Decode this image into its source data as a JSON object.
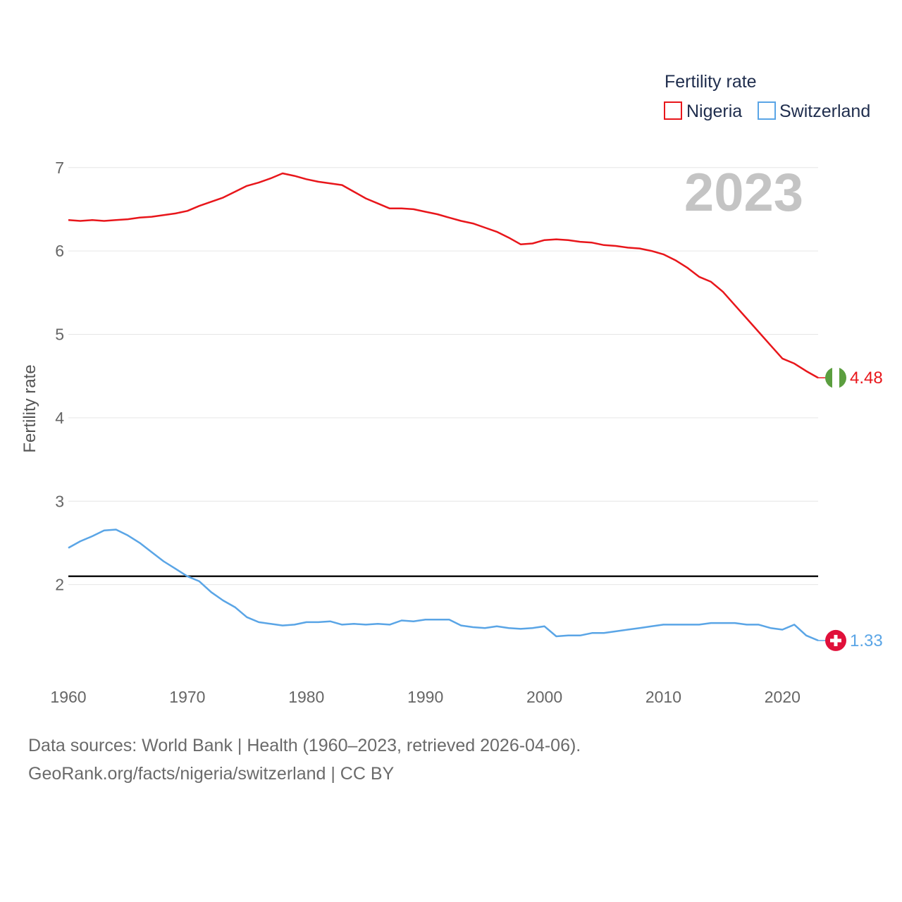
{
  "chart_data": {
    "type": "line",
    "legend_title": "Fertility rate",
    "ylabel": "Fertility rate",
    "xlabel": "",
    "year_label": "2023",
    "xlim": [
      1960,
      2023
    ],
    "ylim": [
      1,
      7.15
    ],
    "x_ticks": [
      1960,
      1970,
      1980,
      1990,
      2000,
      2010,
      2020
    ],
    "y_ticks": [
      2,
      3,
      4,
      5,
      6,
      7
    ],
    "reference_line": 2.1,
    "legend_position": "top-right",
    "x": [
      1960,
      1961,
      1962,
      1963,
      1964,
      1965,
      1966,
      1967,
      1968,
      1969,
      1970,
      1971,
      1972,
      1973,
      1974,
      1975,
      1976,
      1977,
      1978,
      1979,
      1980,
      1981,
      1982,
      1983,
      1984,
      1985,
      1986,
      1987,
      1988,
      1989,
      1990,
      1991,
      1992,
      1993,
      1994,
      1995,
      1996,
      1997,
      1998,
      1999,
      2000,
      2001,
      2002,
      2003,
      2004,
      2005,
      2006,
      2007,
      2008,
      2009,
      2010,
      2011,
      2012,
      2013,
      2014,
      2015,
      2016,
      2017,
      2018,
      2019,
      2020,
      2021,
      2022,
      2023
    ],
    "series": [
      {
        "name": "Nigeria",
        "color": "#e8161b",
        "end_label": "4.48",
        "flag": "nigeria-flag-icon",
        "values": [
          6.37,
          6.36,
          6.37,
          6.36,
          6.37,
          6.38,
          6.4,
          6.41,
          6.43,
          6.45,
          6.48,
          6.54,
          6.59,
          6.64,
          6.71,
          6.78,
          6.82,
          6.87,
          6.93,
          6.9,
          6.86,
          6.83,
          6.81,
          6.79,
          6.71,
          6.63,
          6.57,
          6.51,
          6.51,
          6.5,
          6.47,
          6.44,
          6.4,
          6.36,
          6.33,
          6.28,
          6.23,
          6.16,
          6.08,
          6.09,
          6.13,
          6.14,
          6.13,
          6.11,
          6.1,
          6.07,
          6.06,
          6.04,
          6.03,
          6.0,
          5.96,
          5.89,
          5.8,
          5.69,
          5.63,
          5.51,
          5.35,
          5.19,
          5.03,
          4.87,
          4.71,
          4.65,
          4.56,
          4.48
        ]
      },
      {
        "name": "Switzerland",
        "color": "#5aa5e6",
        "end_label": "1.33",
        "flag": "switzerland-flag-icon",
        "values": [
          2.44,
          2.52,
          2.58,
          2.65,
          2.66,
          2.59,
          2.5,
          2.39,
          2.28,
          2.19,
          2.1,
          2.04,
          1.91,
          1.81,
          1.73,
          1.61,
          1.55,
          1.53,
          1.51,
          1.52,
          1.55,
          1.55,
          1.56,
          1.52,
          1.53,
          1.52,
          1.53,
          1.52,
          1.57,
          1.56,
          1.58,
          1.58,
          1.58,
          1.51,
          1.49,
          1.48,
          1.5,
          1.48,
          1.47,
          1.48,
          1.5,
          1.38,
          1.39,
          1.39,
          1.42,
          1.42,
          1.44,
          1.46,
          1.48,
          1.5,
          1.52,
          1.52,
          1.52,
          1.52,
          1.54,
          1.54,
          1.54,
          1.52,
          1.52,
          1.48,
          1.46,
          1.52,
          1.39,
          1.33
        ]
      }
    ]
  },
  "footer": {
    "sources": "Data sources: World Bank | Health (1960–2023, retrieved 2026-04-06).",
    "attribution": "GeoRank.org/facts/nigeria/switzerland | CC BY"
  }
}
